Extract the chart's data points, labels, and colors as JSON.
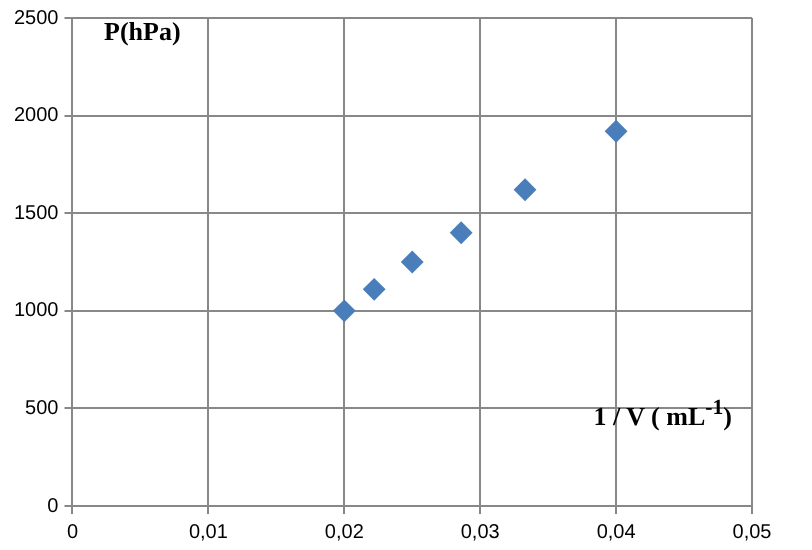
{
  "chart_data": {
    "type": "scatter",
    "xlabel": "1 / V ( mL$^{-1}$)",
    "ylabel": "P(hPa)",
    "x": [
      0.02,
      0.0222,
      0.025,
      0.0286,
      0.0333,
      0.04
    ],
    "values": [
      1000,
      1110,
      1250,
      1400,
      1620,
      1920
    ],
    "color": "#4a7ebb",
    "marker": "diamond",
    "xlim": [
      0,
      0.05
    ],
    "ylim": [
      0,
      2500
    ],
    "xticks": [
      0,
      {
        "value": 0.01,
        "label": "0,01"
      },
      {
        "value": 0.02,
        "label": "0,02"
      },
      {
        "value": 0.03,
        "label": "0,03"
      },
      {
        "value": 0.04,
        "label": "0,04"
      },
      {
        "value": 0.05,
        "label": "0,05"
      }
    ],
    "yticks": [
      0,
      500,
      1000,
      1500,
      2000,
      2500
    ],
    "grid": true
  }
}
